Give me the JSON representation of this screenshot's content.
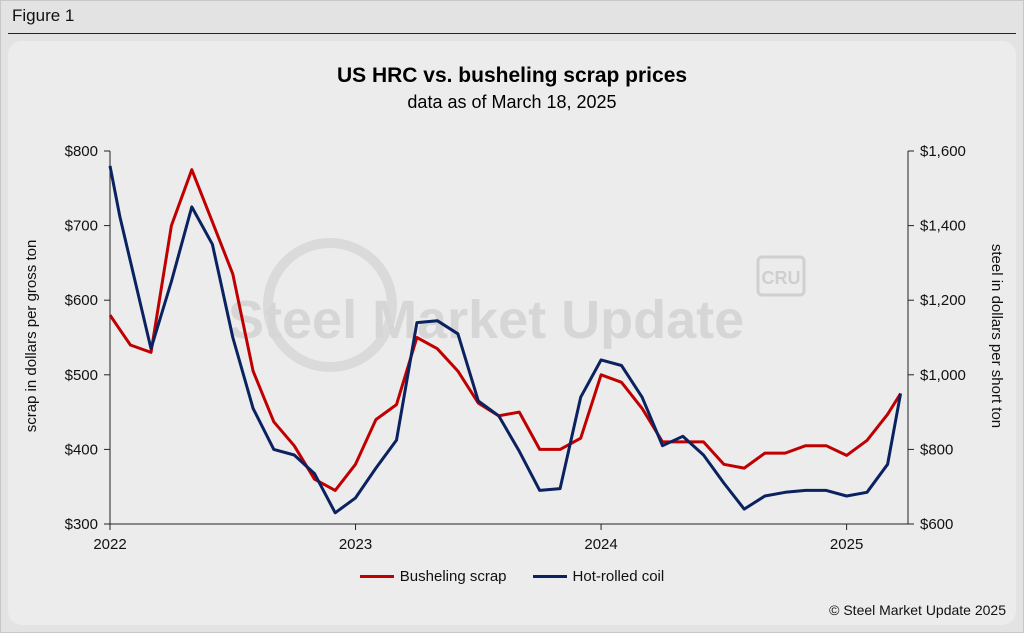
{
  "figure_label": "Figure 1",
  "copyright": "© Steel Market Update 2025",
  "watermark": {
    "text": "Steel Market Update",
    "badge": "CRU"
  },
  "colors": {
    "scrap": "#c00000",
    "hrc": "#0b2260"
  },
  "chart_data": {
    "type": "line",
    "title": "US HRC vs. busheling scrap prices",
    "subtitle": "data as of March 18, 2025",
    "xlabel": "",
    "ylabel_left": "scrap in dollars per gross ton",
    "ylabel_right": "steel in dollars per short ton",
    "x_ticks": [
      "2022",
      "2023",
      "2024",
      "2025"
    ],
    "x_range": [
      2022.0,
      2025.25
    ],
    "y_left": {
      "range": [
        300,
        800
      ],
      "ticks": [
        "$300",
        "$400",
        "$500",
        "$600",
        "$700",
        "$800"
      ]
    },
    "y_right": {
      "range": [
        600,
        1600
      ],
      "ticks": [
        "$600",
        "$800",
        "$1,000",
        "$1,200",
        "$1,400",
        "$1,600"
      ]
    },
    "grid": false,
    "legend_position": "bottom",
    "series": [
      {
        "name": "Busheling scrap",
        "axis": "left",
        "x": [
          2022.0,
          2022.083,
          2022.167,
          2022.25,
          2022.333,
          2022.417,
          2022.5,
          2022.583,
          2022.667,
          2022.75,
          2022.833,
          2022.917,
          2023.0,
          2023.083,
          2023.167,
          2023.25,
          2023.333,
          2023.417,
          2023.5,
          2023.583,
          2023.667,
          2023.75,
          2023.833,
          2023.917,
          2024.0,
          2024.083,
          2024.167,
          2024.25,
          2024.333,
          2024.417,
          2024.5,
          2024.583,
          2024.667,
          2024.75,
          2024.833,
          2024.917,
          2025.0,
          2025.083,
          2025.167,
          2025.22
        ],
        "values": [
          580,
          540,
          530,
          700,
          775,
          705,
          635,
          505,
          437,
          405,
          360,
          345,
          380,
          440,
          460,
          550,
          535,
          505,
          462,
          445,
          450,
          400,
          400,
          415,
          500,
          490,
          455,
          410,
          410,
          410,
          380,
          375,
          395,
          395,
          405,
          405,
          392,
          412,
          447,
          475
        ]
      },
      {
        "name": "Hot-rolled coil",
        "axis": "right",
        "x": [
          2022.0,
          2022.04,
          2022.167,
          2022.25,
          2022.333,
          2022.417,
          2022.5,
          2022.583,
          2022.667,
          2022.75,
          2022.833,
          2022.917,
          2023.0,
          2023.083,
          2023.167,
          2023.25,
          2023.333,
          2023.417,
          2023.5,
          2023.583,
          2023.667,
          2023.75,
          2023.833,
          2023.917,
          2024.0,
          2024.083,
          2024.167,
          2024.25,
          2024.333,
          2024.417,
          2024.5,
          2024.583,
          2024.667,
          2024.75,
          2024.833,
          2024.917,
          2025.0,
          2025.083,
          2025.167,
          2025.22
        ],
        "values": [
          1560,
          1425,
          1070,
          1250,
          1450,
          1350,
          1100,
          910,
          800,
          785,
          735,
          630,
          670,
          750,
          825,
          1140,
          1145,
          1110,
          930,
          890,
          795,
          690,
          695,
          940,
          1040,
          1025,
          940,
          810,
          835,
          785,
          710,
          640,
          675,
          685,
          690,
          690,
          675,
          685,
          760,
          950
        ]
      }
    ]
  }
}
